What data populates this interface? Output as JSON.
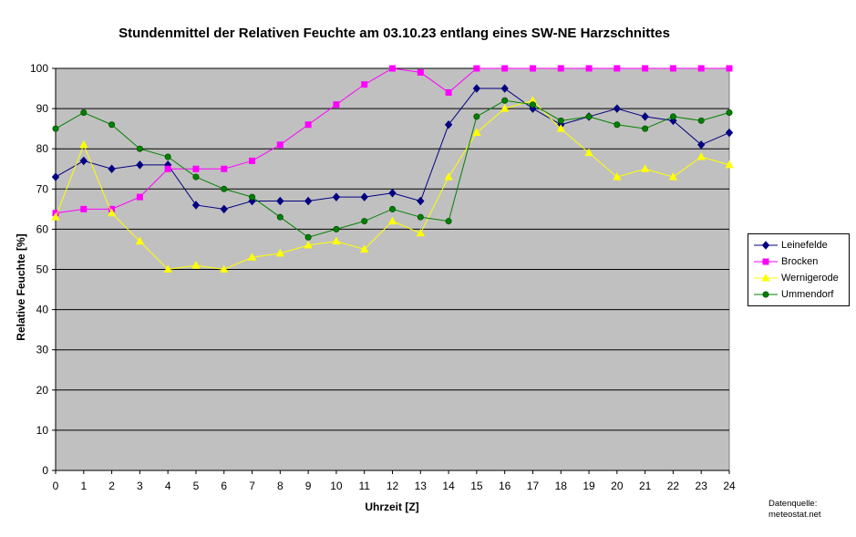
{
  "chart_data": {
    "type": "line",
    "title": "Stundenmittel der Relativen Feuchte am 03.10.23 entlang eines SW-NE Harzschnittes",
    "xlabel": "Uhrzeit [Z]",
    "ylabel": "Relative Feuchte  [%]",
    "x": [
      0,
      1,
      2,
      3,
      4,
      5,
      6,
      7,
      8,
      9,
      10,
      11,
      12,
      13,
      14,
      15,
      16,
      17,
      18,
      19,
      20,
      21,
      22,
      23,
      24
    ],
    "ylim": [
      0,
      100
    ],
    "yticks": [
      0,
      10,
      20,
      30,
      40,
      50,
      60,
      70,
      80,
      90,
      100
    ],
    "grid": "horizontal",
    "legend_position": "right",
    "plot_background": "#c0c0c0",
    "series": [
      {
        "name": "Leinefelde",
        "color": "#000080",
        "marker": "diamond",
        "values": [
          73,
          77,
          75,
          76,
          76,
          66,
          65,
          67,
          67,
          67,
          68,
          68,
          69,
          67,
          86,
          95,
          95,
          90,
          86,
          88,
          90,
          88,
          87,
          81,
          84
        ]
      },
      {
        "name": "Brocken",
        "color": "#ff00ff",
        "marker": "square",
        "values": [
          64,
          65,
          65,
          68,
          75,
          75,
          75,
          77,
          81,
          86,
          91,
          96,
          100,
          99,
          94,
          100,
          100,
          100,
          100,
          100,
          100,
          100,
          100,
          100,
          100
        ]
      },
      {
        "name": "Wernigerode",
        "color": "#ffff00",
        "marker": "triangle",
        "values": [
          63,
          81,
          64,
          57,
          50,
          51,
          50,
          53,
          54,
          56,
          57,
          55,
          62,
          59,
          73,
          84,
          90,
          92,
          85,
          79,
          73,
          75,
          73,
          78,
          76
        ]
      },
      {
        "name": "Ummendorf",
        "color": "#008000",
        "marker": "circle",
        "values": [
          85,
          89,
          86,
          80,
          78,
          73,
          70,
          68,
          63,
          58,
          60,
          62,
          65,
          63,
          62,
          88,
          92,
          91,
          87,
          88,
          86,
          85,
          88,
          87,
          89
        ]
      }
    ]
  },
  "source": {
    "line1": "Datenquelle:",
    "line2": "meteostat.net"
  }
}
